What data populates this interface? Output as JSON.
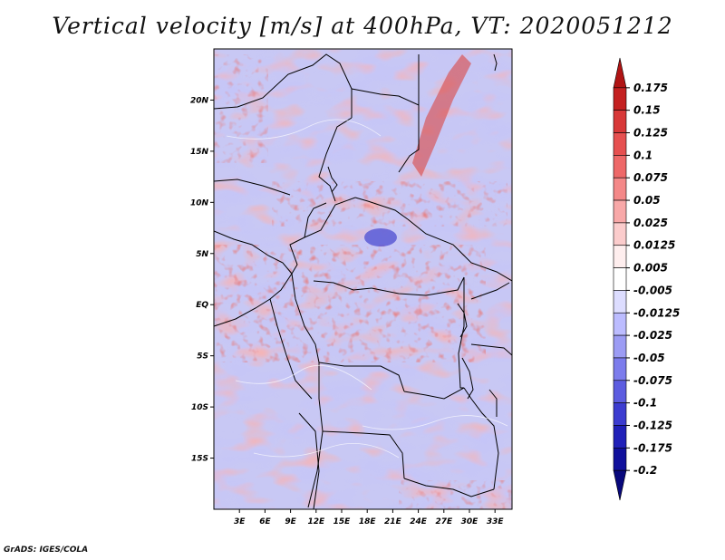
{
  "title": "Vertical velocity [m/s] at 400hPa, VT: 2020051212",
  "footer": "GrADS: IGES/COLA",
  "map": {
    "lat_labels": [
      "20N",
      "15N",
      "10N",
      "5N",
      "EQ",
      "5S",
      "10S",
      "15S"
    ],
    "lon_labels": [
      "3E",
      "6E",
      "9E",
      "12E",
      "15E",
      "18E",
      "21E",
      "24E",
      "27E",
      "30E",
      "33E"
    ],
    "lat_values": [
      20,
      15,
      10,
      5,
      0,
      -5,
      -10,
      -15
    ],
    "lon_values": [
      3,
      6,
      9,
      12,
      15,
      18,
      21,
      24,
      27,
      30,
      33
    ],
    "lat_range": [
      -20,
      25
    ],
    "lon_range": [
      0,
      35
    ]
  },
  "colorbar": {
    "labels": [
      "0.175",
      "0.15",
      "0.125",
      "0.1",
      "0.075",
      "0.05",
      "0.025",
      "0.0125",
      "0.005",
      "-0.005",
      "-0.0125",
      "-0.025",
      "-0.05",
      "-0.075",
      "-0.1",
      "-0.125",
      "-0.175",
      "-0.2"
    ],
    "colors": [
      "#b01414",
      "#c42020",
      "#d83838",
      "#e65050",
      "#ee6868",
      "#f48888",
      "#f8a8a8",
      "#fbcccc",
      "#feeeee",
      "#ffffff",
      "#ddddff",
      "#bcbcff",
      "#9c9cf4",
      "#7c7cec",
      "#5c5ce0",
      "#3c3cd0",
      "#2020b8",
      "#10109c",
      "#08087c"
    ]
  }
}
